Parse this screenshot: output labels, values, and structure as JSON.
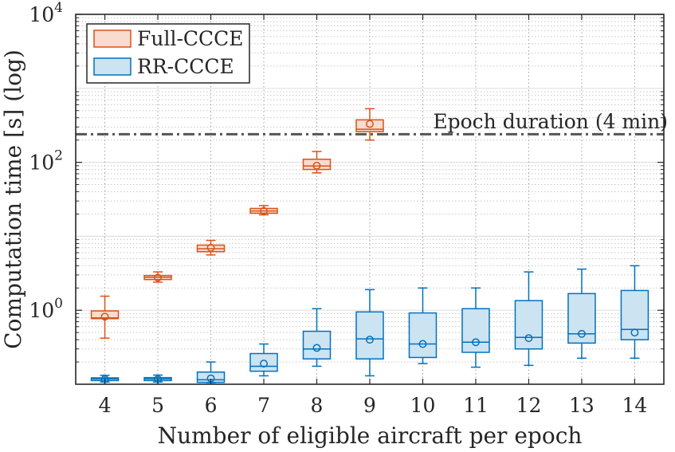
{
  "chart_data": {
    "type": "boxplot",
    "title": "",
    "xlabel": "Number of eligible aircraft per epoch",
    "ylabel": "Computation time [s] (log)",
    "yscale": "log",
    "ylim": [
      0.1,
      10000
    ],
    "xlim": [
      3.45,
      14.55
    ],
    "grid": true,
    "legend_location": "top-left",
    "x_ticks": [
      4,
      5,
      6,
      7,
      8,
      9,
      10,
      11,
      12,
      13,
      14
    ],
    "x_tick_labels": [
      "4",
      "5",
      "6",
      "7",
      "8",
      "9",
      "10",
      "11",
      "12",
      "13",
      "14"
    ],
    "y_ticks": [
      {
        "value": 1,
        "base": "10",
        "exp": "0"
      },
      {
        "value": 100,
        "base": "10",
        "exp": "2"
      },
      {
        "value": 10000,
        "base": "10",
        "exp": "4"
      }
    ],
    "reference_line": {
      "value": 240,
      "label": "Epoch duration (4 min)"
    },
    "series": [
      {
        "name": "Full-CCCE",
        "color": "#D95319",
        "fill": "#F7DCCF",
        "boxes": [
          {
            "x": 4,
            "whisker_low": 0.42,
            "q1": 0.77,
            "median": 0.79,
            "q3": 0.98,
            "whisker_high": 1.55,
            "mean": 0.82
          },
          {
            "x": 5,
            "whisker_low": 2.4,
            "q1": 2.6,
            "median": 2.8,
            "q3": 2.95,
            "whisker_high": 3.3,
            "mean": 2.75
          },
          {
            "x": 6,
            "whisker_low": 5.6,
            "q1": 6.2,
            "median": 6.8,
            "q3": 7.6,
            "whisker_high": 8.8,
            "mean": 7.0
          },
          {
            "x": 7,
            "whisker_low": 19.5,
            "q1": 20.5,
            "median": 22.0,
            "q3": 23.8,
            "whisker_high": 26.0,
            "mean": 22.0
          },
          {
            "x": 8,
            "whisker_low": 72,
            "q1": 80,
            "median": 89,
            "q3": 110,
            "whisker_high": 140,
            "mean": 90
          },
          {
            "x": 9,
            "whisker_low": 200,
            "q1": 260,
            "median": 280,
            "q3": 375,
            "whisker_high": 530,
            "mean": 330
          }
        ]
      },
      {
        "name": "RR-CCCE",
        "color": "#0072BD",
        "fill": "#CCE3F2",
        "boxes": [
          {
            "x": 4,
            "whisker_low": 0.107,
            "q1": 0.112,
            "median": 0.118,
            "q3": 0.122,
            "whisker_high": 0.132,
            "mean": 0.117
          },
          {
            "x": 5,
            "whisker_low": 0.107,
            "q1": 0.112,
            "median": 0.118,
            "q3": 0.123,
            "whisker_high": 0.133,
            "mean": 0.117
          },
          {
            "x": 6,
            "whisker_low": 0.105,
            "q1": 0.106,
            "median": 0.115,
            "q3": 0.146,
            "whisker_high": 0.2,
            "mean": 0.12
          },
          {
            "x": 7,
            "whisker_low": 0.13,
            "q1": 0.15,
            "median": 0.175,
            "q3": 0.26,
            "whisker_high": 0.35,
            "mean": 0.19
          },
          {
            "x": 8,
            "whisker_low": 0.175,
            "q1": 0.22,
            "median": 0.3,
            "q3": 0.52,
            "whisker_high": 1.05,
            "mean": 0.31
          },
          {
            "x": 9,
            "whisker_low": 0.13,
            "q1": 0.22,
            "median": 0.41,
            "q3": 0.95,
            "whisker_high": 1.9,
            "mean": 0.4
          },
          {
            "x": 10,
            "whisker_low": 0.19,
            "q1": 0.23,
            "median": 0.35,
            "q3": 0.92,
            "whisker_high": 2.0,
            "mean": 0.35
          },
          {
            "x": 11,
            "whisker_low": 0.17,
            "q1": 0.27,
            "median": 0.37,
            "q3": 1.05,
            "whisker_high": 2.0,
            "mean": 0.37
          },
          {
            "x": 12,
            "whisker_low": 0.18,
            "q1": 0.3,
            "median": 0.43,
            "q3": 1.35,
            "whisker_high": 3.3,
            "mean": 0.42
          },
          {
            "x": 13,
            "whisker_low": 0.225,
            "q1": 0.36,
            "median": 0.48,
            "q3": 1.68,
            "whisker_high": 3.6,
            "mean": 0.48
          },
          {
            "x": 14,
            "whisker_low": 0.225,
            "q1": 0.4,
            "median": 0.55,
            "q3": 1.85,
            "whisker_high": 4.0,
            "mean": 0.5
          }
        ]
      }
    ]
  }
}
